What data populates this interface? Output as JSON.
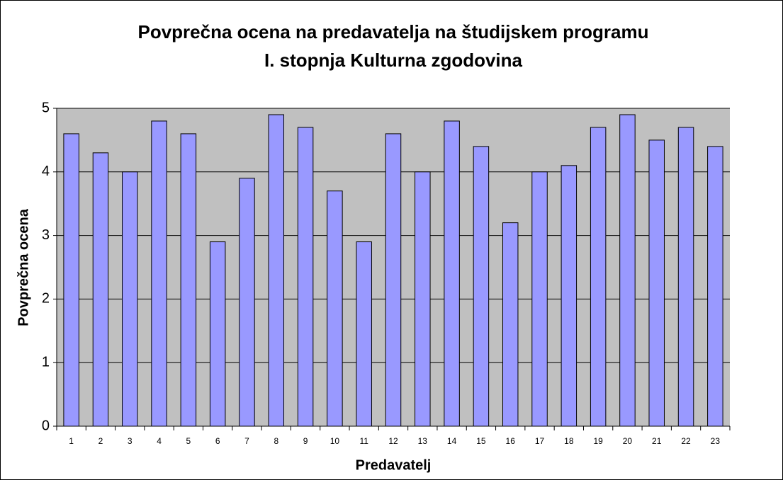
{
  "chart_data": {
    "type": "bar",
    "title": [
      "Povprečna ocena na predavatelja na študijskem programu",
      "I. stopnja Kulturna zgodovina"
    ],
    "xlabel": "Predavatelj",
    "ylabel": "Povprečna ocena",
    "categories": [
      "1",
      "2",
      "3",
      "4",
      "5",
      "6",
      "7",
      "8",
      "9",
      "10",
      "11",
      "12",
      "13",
      "14",
      "15",
      "16",
      "17",
      "18",
      "19",
      "20",
      "21",
      "22",
      "23"
    ],
    "values": [
      4.6,
      4.3,
      4.0,
      4.8,
      4.6,
      2.9,
      3.9,
      4.9,
      4.7,
      3.7,
      2.9,
      4.6,
      4.0,
      4.8,
      4.4,
      3.2,
      4.0,
      4.1,
      4.7,
      4.9,
      4.5,
      4.7,
      4.4
    ],
    "color": "#9999ff",
    "ylim": [
      0,
      5
    ],
    "yticks": [
      0,
      1,
      2,
      3,
      4,
      5
    ],
    "grid": true
  }
}
